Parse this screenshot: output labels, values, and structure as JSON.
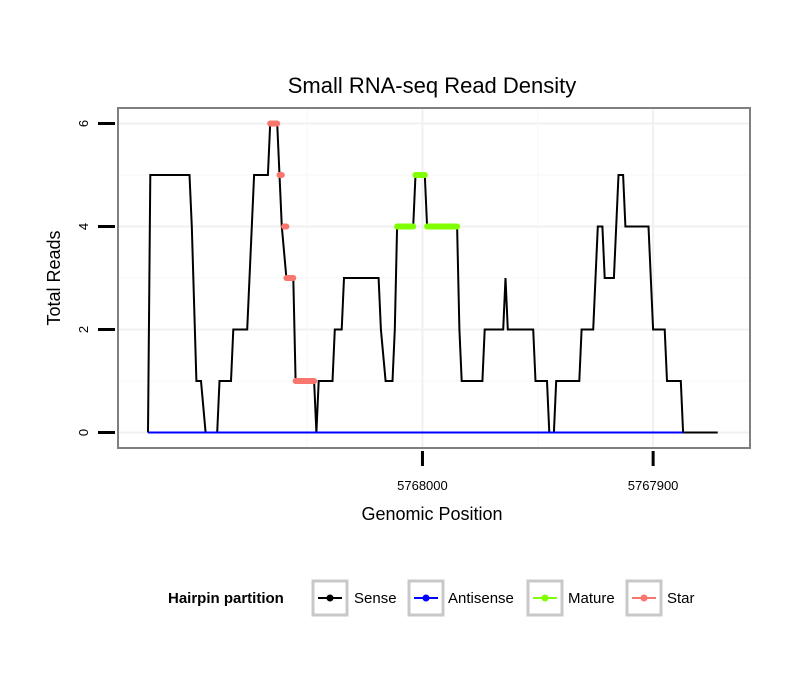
{
  "chart_data": {
    "type": "line",
    "title": "Small RNA-seq Read Density",
    "xlabel": "Genomic Position",
    "ylabel": "Total Reads",
    "xlim": [
      5768132,
      5767858
    ],
    "ylim": [
      -0.3,
      6.3
    ],
    "x_reversed": true,
    "x_ticks": [
      5768000,
      5767900
    ],
    "x_tick_labels": [
      "5768000",
      "5767900"
    ],
    "y_ticks": [
      0,
      2,
      4,
      6
    ],
    "y_tick_labels": [
      "0",
      "2",
      "4",
      "6"
    ],
    "grid": true,
    "legend": {
      "title": "Hairpin partition",
      "position": "bottom",
      "entries": [
        "Sense",
        "Antisense",
        "Mature",
        "Star"
      ]
    },
    "series": [
      {
        "name": "Sense",
        "color": "#000000",
        "line_width": 2,
        "points": [
          [
            5768119,
            0
          ],
          [
            5768118,
            5
          ],
          [
            5768101,
            5
          ],
          [
            5768100,
            4
          ],
          [
            5768098,
            1
          ],
          [
            5768096,
            1
          ],
          [
            5768094,
            0
          ],
          [
            5768089,
            0
          ],
          [
            5768088,
            1
          ],
          [
            5768083,
            1
          ],
          [
            5768082,
            2
          ],
          [
            5768076,
            2
          ],
          [
            5768075,
            3
          ],
          [
            5768074,
            4
          ],
          [
            5768073,
            5
          ],
          [
            5768067,
            5
          ],
          [
            5768066,
            6
          ],
          [
            5768063,
            6
          ],
          [
            5768062,
            5
          ],
          [
            5768061,
            4
          ],
          [
            5768059,
            3
          ],
          [
            5768056,
            3
          ],
          [
            5768055,
            1
          ],
          [
            5768047,
            1
          ],
          [
            5768046,
            0
          ],
          [
            5768045,
            1
          ],
          [
            5768039,
            1
          ],
          [
            5768038,
            2
          ],
          [
            5768035,
            2
          ],
          [
            5768034,
            3
          ],
          [
            5768019,
            3
          ],
          [
            5768018,
            2
          ],
          [
            5768016,
            1
          ],
          [
            5768013,
            1
          ],
          [
            5768012,
            2
          ],
          [
            5768011,
            4
          ],
          [
            5768004,
            4
          ],
          [
            5768003,
            5
          ],
          [
            5767999,
            5
          ],
          [
            5767998,
            4
          ],
          [
            5767985,
            4
          ],
          [
            5767984,
            2
          ],
          [
            5767983,
            1
          ],
          [
            5767974,
            1
          ],
          [
            5767973,
            2
          ],
          [
            5767965,
            2
          ],
          [
            5767964,
            3
          ],
          [
            5767963,
            2
          ],
          [
            5767952,
            2
          ],
          [
            5767951,
            1
          ],
          [
            5767946,
            1
          ],
          [
            5767945,
            0
          ],
          [
            5767943,
            0
          ],
          [
            5767942,
            1
          ],
          [
            5767932,
            1
          ],
          [
            5767931,
            2
          ],
          [
            5767926,
            2
          ],
          [
            5767925,
            3
          ],
          [
            5767924,
            4
          ],
          [
            5767922,
            4
          ],
          [
            5767921,
            3
          ],
          [
            5767917,
            3
          ],
          [
            5767916,
            4
          ],
          [
            5767915,
            5
          ],
          [
            5767913,
            5
          ],
          [
            5767912,
            4
          ],
          [
            5767902,
            4
          ],
          [
            5767901,
            3
          ],
          [
            5767900,
            2
          ],
          [
            5767895,
            2
          ],
          [
            5767894,
            1
          ],
          [
            5767888,
            1
          ],
          [
            5767887,
            0
          ],
          [
            5767872,
            0
          ]
        ]
      },
      {
        "name": "Antisense",
        "color": "#0000ff",
        "line_width": 2,
        "points": [
          [
            5768119,
            0
          ],
          [
            5767887,
            0
          ]
        ]
      },
      {
        "name": "Mature",
        "color": "#7fff00",
        "line_width": 6,
        "segments": [
          [
            [
              5768011,
              4
            ],
            [
              5768004,
              4
            ]
          ],
          [
            [
              5768003,
              5
            ],
            [
              5767999,
              5
            ]
          ],
          [
            [
              5767998,
              4
            ],
            [
              5767985,
              4
            ]
          ]
        ]
      },
      {
        "name": "Star",
        "color": "#f8766d",
        "line_width": 6,
        "segments": [
          [
            [
              5768066,
              6
            ],
            [
              5768063,
              6
            ]
          ],
          [
            [
              5768062,
              5
            ],
            [
              5768061,
              5
            ]
          ],
          [
            [
              5768060,
              4
            ],
            [
              5768059,
              4
            ]
          ],
          [
            [
              5768059,
              3
            ],
            [
              5768056,
              3
            ]
          ],
          [
            [
              5768055,
              1
            ],
            [
              5768047,
              1
            ]
          ]
        ]
      }
    ]
  }
}
